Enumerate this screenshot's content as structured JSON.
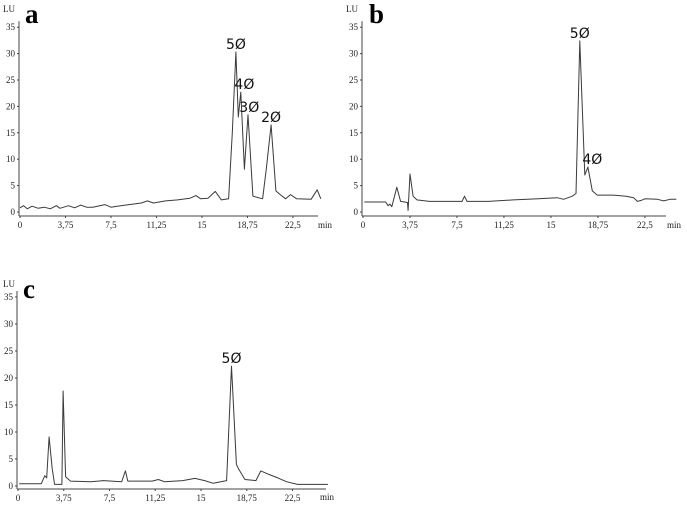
{
  "chart_data": [
    {
      "type": "line",
      "title": "a",
      "ylabel": "LU",
      "xlabel": "min",
      "ylim": [
        0,
        35
      ],
      "xlim": [
        0,
        25
      ],
      "yticks": [
        "0",
        "5",
        "10",
        "15",
        "20",
        "25",
        "30",
        "35"
      ],
      "xticks": [
        {
          "v": 0,
          "label": "0"
        },
        {
          "v": 3.75,
          "label": "3,75"
        },
        {
          "v": 7.5,
          "label": "7,5"
        },
        {
          "v": 11.25,
          "label": "11,25"
        },
        {
          "v": 15,
          "label": "15"
        },
        {
          "v": 18.75,
          "label": "18,75"
        },
        {
          "v": 22.5,
          "label": "22,5"
        }
      ],
      "grid": false,
      "color": "#3a3a3a",
      "annotations": [
        {
          "label": "5Ø",
          "x": 17.8,
          "y": 30.3
        },
        {
          "label": "4Ø",
          "x": 18.5,
          "y": 22.7
        },
        {
          "label": "3Ø",
          "x": 18.9,
          "y": 18.4
        },
        {
          "label": "2Ø",
          "x": 20.7,
          "y": 16.5
        }
      ],
      "points": [
        [
          0,
          0.8
        ],
        [
          0.3,
          1.2
        ],
        [
          0.6,
          0.6
        ],
        [
          1,
          1.1
        ],
        [
          1.5,
          0.7
        ],
        [
          2,
          0.9
        ],
        [
          2.5,
          0.6
        ],
        [
          3,
          1.2
        ],
        [
          3.3,
          0.7
        ],
        [
          4,
          1.2
        ],
        [
          4.5,
          0.8
        ],
        [
          5,
          1.3
        ],
        [
          5.5,
          0.9
        ],
        [
          6,
          0.9
        ],
        [
          7,
          1.4
        ],
        [
          7.5,
          0.9
        ],
        [
          8,
          1.1
        ],
        [
          9,
          1.4
        ],
        [
          10,
          1.7
        ],
        [
          10.5,
          2.1
        ],
        [
          11,
          1.7
        ],
        [
          12,
          2.1
        ],
        [
          13,
          2.3
        ],
        [
          14,
          2.6
        ],
        [
          14.5,
          3.1
        ],
        [
          14.9,
          2.5
        ],
        [
          15.5,
          2.6
        ],
        [
          16.1,
          3.9
        ],
        [
          16.6,
          2.3
        ],
        [
          17.2,
          2.5
        ],
        [
          17.5,
          15
        ],
        [
          17.8,
          30.3
        ],
        [
          18,
          18
        ],
        [
          18.2,
          22.7
        ],
        [
          18.5,
          8.1
        ],
        [
          18.8,
          18.4
        ],
        [
          19.2,
          3
        ],
        [
          20,
          2.5
        ],
        [
          20.3,
          8
        ],
        [
          20.7,
          16.5
        ],
        [
          21.1,
          4
        ],
        [
          21.5,
          3.2
        ],
        [
          21.9,
          2.5
        ],
        [
          22.3,
          3.3
        ],
        [
          22.8,
          2.5
        ],
        [
          24,
          2.4
        ],
        [
          24.5,
          4.2
        ],
        [
          24.8,
          2.5
        ]
      ]
    },
    {
      "type": "line",
      "title": "b",
      "ylabel": "LU",
      "xlabel": "min",
      "ylim": [
        0,
        35
      ],
      "xlim": [
        0,
        25
      ],
      "yticks": [
        "0",
        "5",
        "10",
        "15",
        "20",
        "25",
        "30",
        "35"
      ],
      "xticks": [
        {
          "v": 0,
          "label": "0"
        },
        {
          "v": 3.75,
          "label": "3,75"
        },
        {
          "v": 7.5,
          "label": "7,5"
        },
        {
          "v": 11.25,
          "label": "11,25"
        },
        {
          "v": 15,
          "label": "15"
        },
        {
          "v": 18.75,
          "label": "18,75"
        },
        {
          "v": 22.5,
          "label": "22,5"
        }
      ],
      "grid": false,
      "color": "#3a3a3a",
      "annotations": [
        {
          "label": "5Ø",
          "x": 17.3,
          "y": 32.4
        },
        {
          "label": "4Ø",
          "x": 18.3,
          "y": 8.5
        }
      ],
      "points": [
        [
          0.1,
          1.9
        ],
        [
          1.8,
          1.9
        ],
        [
          2.0,
          1.2
        ],
        [
          2.15,
          1.5
        ],
        [
          2.3,
          1.0
        ],
        [
          2.7,
          4.7
        ],
        [
          3.0,
          2.0
        ],
        [
          3.55,
          1.8
        ],
        [
          3.6,
          0.3
        ],
        [
          3.75,
          7.2
        ],
        [
          4.0,
          3
        ],
        [
          4.3,
          2.3
        ],
        [
          5.3,
          2.0
        ],
        [
          7.9,
          2.0
        ],
        [
          8.1,
          3.0
        ],
        [
          8.3,
          2.0
        ],
        [
          10,
          2.0
        ],
        [
          12,
          2.3
        ],
        [
          14,
          2.5
        ],
        [
          15.5,
          2.7
        ],
        [
          16,
          2.4
        ],
        [
          16.7,
          3
        ],
        [
          17.0,
          3.5
        ],
        [
          17.3,
          32.4
        ],
        [
          17.7,
          7
        ],
        [
          17.95,
          8.5
        ],
        [
          18.3,
          4
        ],
        [
          18.7,
          3.2
        ],
        [
          20,
          3.2
        ],
        [
          21,
          3
        ],
        [
          21.6,
          2.7
        ],
        [
          21.9,
          2.0
        ],
        [
          22.2,
          2.2
        ],
        [
          22.5,
          2.5
        ],
        [
          23.5,
          2.4
        ],
        [
          24,
          2.1
        ],
        [
          24.5,
          2.4
        ],
        [
          25,
          2.4
        ]
      ]
    },
    {
      "type": "line",
      "title": "c",
      "ylabel": "LU",
      "xlabel": "min",
      "ylim": [
        0,
        35
      ],
      "xlim": [
        0,
        25
      ],
      "yticks": [
        "0",
        "5",
        "10",
        "15",
        "20",
        "25",
        "30",
        "35"
      ],
      "xticks": [
        {
          "v": 0,
          "label": "0"
        },
        {
          "v": 3.75,
          "label": "3,75"
        },
        {
          "v": 7.5,
          "label": "7,5"
        },
        {
          "v": 11.25,
          "label": "11,25"
        },
        {
          "v": 15,
          "label": "15"
        },
        {
          "v": 18.75,
          "label": "18,75"
        },
        {
          "v": 22.5,
          "label": "22,5"
        }
      ],
      "grid": false,
      "color": "#3a3a3a",
      "annotations": [
        {
          "label": "5Ø",
          "x": 17.5,
          "y": 22.2
        }
      ],
      "points": [
        [
          0.1,
          0.4
        ],
        [
          1.9,
          0.4
        ],
        [
          2.2,
          1.9
        ],
        [
          2.35,
          1.5
        ],
        [
          2.55,
          9.1
        ],
        [
          2.8,
          3.2
        ],
        [
          3.0,
          0.3
        ],
        [
          3.6,
          0.3
        ],
        [
          3.7,
          17.6
        ],
        [
          3.9,
          1.7
        ],
        [
          4.3,
          0.9
        ],
        [
          6,
          0.8
        ],
        [
          7,
          1.0
        ],
        [
          8.5,
          0.8
        ],
        [
          8.8,
          2.8
        ],
        [
          9,
          0.9
        ],
        [
          11,
          0.9
        ],
        [
          11.5,
          1.2
        ],
        [
          12,
          0.8
        ],
        [
          13.5,
          1.0
        ],
        [
          14.5,
          1.4
        ],
        [
          15.3,
          1.0
        ],
        [
          16,
          0.5
        ],
        [
          17.1,
          1.0
        ],
        [
          17.5,
          22.2
        ],
        [
          17.9,
          4
        ],
        [
          18.1,
          3.1
        ],
        [
          18.6,
          1.2
        ],
        [
          19.5,
          1.0
        ],
        [
          19.9,
          2.8
        ],
        [
          20.5,
          2.2
        ],
        [
          21.3,
          1.5
        ],
        [
          22,
          0.8
        ],
        [
          22.9,
          0.3
        ],
        [
          25.4,
          0.3
        ]
      ]
    }
  ]
}
